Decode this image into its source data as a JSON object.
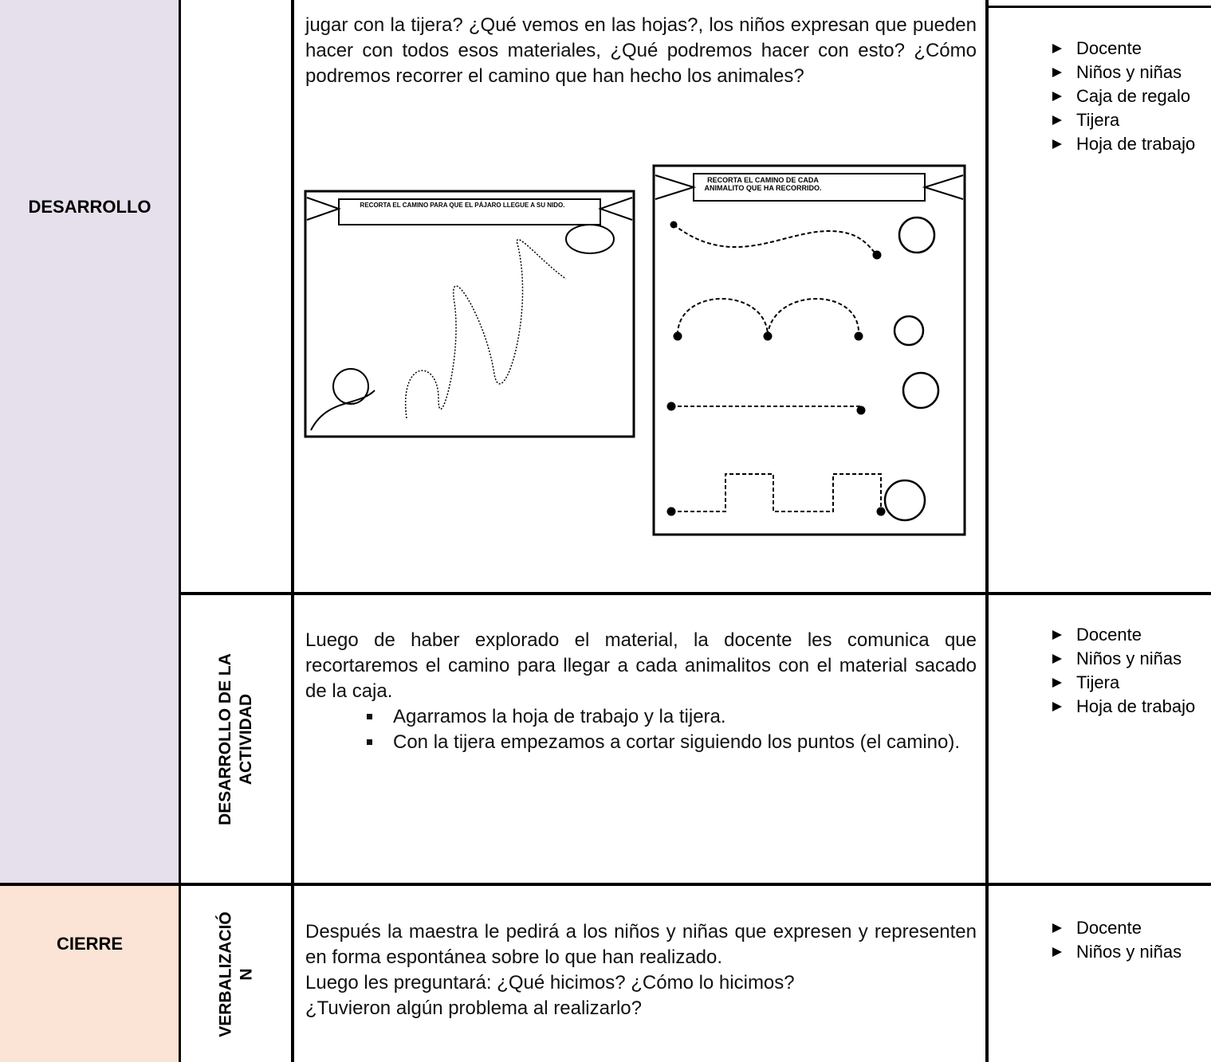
{
  "sections": [
    {
      "phase": "DESARROLLO"
    },
    {
      "phase": "CIERRE"
    }
  ],
  "rows": [
    {
      "text": "jugar con la tijera? ¿Qué vemos en las hojas?, los niños expresan que pueden hacer con todos esos materiales, ¿Qué podremos hacer con esto? ¿Cómo podremos recorrer el camino que han hecho los animales?",
      "worksheets": [
        {
          "title": "RECORTA EL CAMINO PARA QUE EL PÁJARO LLEGUE A SU NIDO."
        },
        {
          "title": "RECORTA EL CAMINO DE CADA ANIMALITO QUE HA RECORRIDO."
        }
      ],
      "resources": [
        "Docente",
        "Niños y niñas",
        "Caja de regalo",
        "Tijera",
        "Hoja de trabajo"
      ]
    },
    {
      "stage": "DESARROLLO DE LA ACTIVIDAD",
      "text": "Luego de haber explorado el material, la docente les comunica que recortaremos el camino para llegar a cada animalitos con el material sacado de la caja.",
      "steps": [
        "Agarramos la hoja de trabajo y la tijera.",
        "Con la tijera empezamos a cortar siguiendo los puntos (el camino)."
      ],
      "resources": [
        "Docente",
        "Niños y niñas",
        "Tijera",
        "Hoja de trabajo"
      ]
    },
    {
      "stage": "VERBALIZACIÓN",
      "paragraphs": [
        "Después la maestra le pedirá a los niños y niñas que expresen y representen en forma espontánea sobre lo que han realizado.",
        "Luego les preguntará: ¿Qué hicimos? ¿Cómo lo hicimos?",
        "¿Tuvieron algún problema al realizarlo?"
      ],
      "resources": [
        "Docente",
        "Niños y niñas"
      ]
    }
  ]
}
